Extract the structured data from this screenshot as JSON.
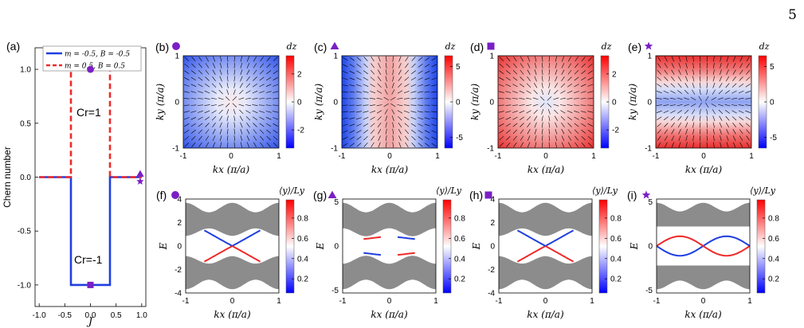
{
  "page_number": "5",
  "colors": {
    "blue": "#1f3fe0",
    "red": "#ee2a2a",
    "purple": "#7a1fc4",
    "gray": "#8c8c8c"
  },
  "chart_data": [
    {
      "id": "a",
      "label": "(a)",
      "type": "line",
      "xlabel": "J",
      "ylabel": "Chern number",
      "xlim": [
        -1.0,
        1.0
      ],
      "ylim": [
        -1.0,
        1.0
      ],
      "xticks": [
        "-1.0",
        "-0.5",
        "0.0",
        "0.5",
        "1.0"
      ],
      "yticks": [
        "-1.0",
        "-0.5",
        "0.0",
        "0.5",
        "1.0"
      ],
      "legend": {
        "placement": "top",
        "entries": [
          "m = -0.5, B = -0.5",
          "m = 0.5, B = 0.5"
        ]
      },
      "series": [
        {
          "name": "m = -0.5, B = -0.5",
          "style": "solid",
          "color": "#1f3fe0",
          "x": [
            -1.0,
            -0.38,
            -0.38,
            0.38,
            0.38,
            1.0
          ],
          "y": [
            0,
            0,
            -1,
            -1,
            0,
            0
          ]
        },
        {
          "name": "m = 0.5, B = 0.5",
          "style": "dashed",
          "color": "#ee2a2a",
          "x": [
            -1.0,
            -0.38,
            -0.38,
            0.38,
            0.38,
            1.0
          ],
          "y": [
            0,
            0,
            1,
            1,
            0,
            0
          ]
        }
      ],
      "markers": [
        {
          "shape": "circle",
          "x": 0.0,
          "y": 1.0
        },
        {
          "shape": "square",
          "x": 0.0,
          "y": -1.0
        },
        {
          "shape": "triangle",
          "x": 0.97,
          "y": 0.03
        },
        {
          "shape": "star",
          "x": 0.97,
          "y": -0.04
        }
      ],
      "annotations": [
        "Cr=1",
        "Cr=-1"
      ]
    },
    {
      "id": "b",
      "label": "(b)",
      "marker": "circle",
      "type": "heatmap",
      "xlabel": "kx (π/a)",
      "ylabel": "ky (π/a)",
      "colorbar_title": "dz",
      "colorbar_ticks": [
        "2",
        "0",
        "-2"
      ],
      "color_range": [
        -3.3,
        3.3
      ],
      "center_value": 1.3,
      "background": "blue"
    },
    {
      "id": "c",
      "label": "(c)",
      "marker": "triangle",
      "type": "heatmap",
      "xlabel": "kx (π/a)",
      "ylabel": "ky (π/a)",
      "colorbar_title": "dz",
      "colorbar_ticks": [
        "5",
        "0",
        "-5"
      ],
      "color_range": [
        -6.5,
        6.5
      ],
      "pattern": "vertical-bands"
    },
    {
      "id": "d",
      "label": "(d)",
      "marker": "square",
      "type": "heatmap",
      "xlabel": "kx (π/a)",
      "ylabel": "ky (π/a)",
      "colorbar_title": "dz",
      "colorbar_ticks": [
        "2",
        "0",
        "-2"
      ],
      "color_range": [
        -3.3,
        3.3
      ],
      "center_value": -1.3,
      "background": "red"
    },
    {
      "id": "e",
      "label": "(e)",
      "marker": "star",
      "type": "heatmap",
      "xlabel": "kx (π/a)",
      "ylabel": "ky (π/a)",
      "colorbar_title": "dz",
      "colorbar_ticks": [
        "5",
        "0",
        "-5"
      ],
      "color_range": [
        -6.5,
        6.5
      ],
      "pattern": "horizontal-bands"
    },
    {
      "id": "f",
      "label": "(f)",
      "marker": "circle",
      "type": "line",
      "xlabel": "kx (π/a)",
      "ylabel": "E",
      "colorbar_title": "⟨y⟩/Ly",
      "colorbar_ticks": [
        "0.8",
        "0.6",
        "0.4",
        "0.2"
      ],
      "yticks": [
        "4",
        "2",
        "0",
        "-2",
        "-4"
      ],
      "ylim": [
        -4,
        4
      ],
      "bulk_gap": 1.4,
      "edge": "cross"
    },
    {
      "id": "g",
      "label": "(g)",
      "marker": "triangle",
      "type": "line",
      "xlabel": "kx (π/a)",
      "ylabel": "E",
      "colorbar_title": "⟨y⟩/Ly",
      "colorbar_ticks": [
        "0.8",
        "0.6",
        "0.4",
        "0.2"
      ],
      "yticks": [
        "5",
        "0",
        "-5"
      ],
      "ylim": [
        -5.3,
        5.3
      ],
      "bulk_gap": 0.7,
      "edge": "split"
    },
    {
      "id": "h",
      "label": "(h)",
      "marker": "square",
      "type": "line",
      "xlabel": "kx (π/a)",
      "ylabel": "E",
      "colorbar_title": "⟨y⟩/Ly",
      "colorbar_ticks": [
        "0.8",
        "0.6",
        "0.4",
        "0.2"
      ],
      "yticks": [
        "4",
        "2",
        "0",
        "-2",
        "-4"
      ],
      "ylim": [
        -4,
        4
      ],
      "bulk_gap": 1.4,
      "edge": "cross"
    },
    {
      "id": "i",
      "label": "(i)",
      "marker": "star",
      "type": "line",
      "xlabel": "kx (π/a)",
      "ylabel": "E",
      "colorbar_title": "⟨y⟩/Ly",
      "colorbar_ticks": [
        "0.8",
        "0.6",
        "0.4",
        "0.2"
      ],
      "yticks": [
        "5",
        "0",
        "-5"
      ],
      "ylim": [
        -5.3,
        5.3
      ],
      "bulk_gap": 2.2,
      "edge": "double"
    }
  ],
  "shared_xticks": [
    "-1",
    "0",
    "1"
  ],
  "shared_yticks": [
    "-1",
    "0",
    "1"
  ]
}
